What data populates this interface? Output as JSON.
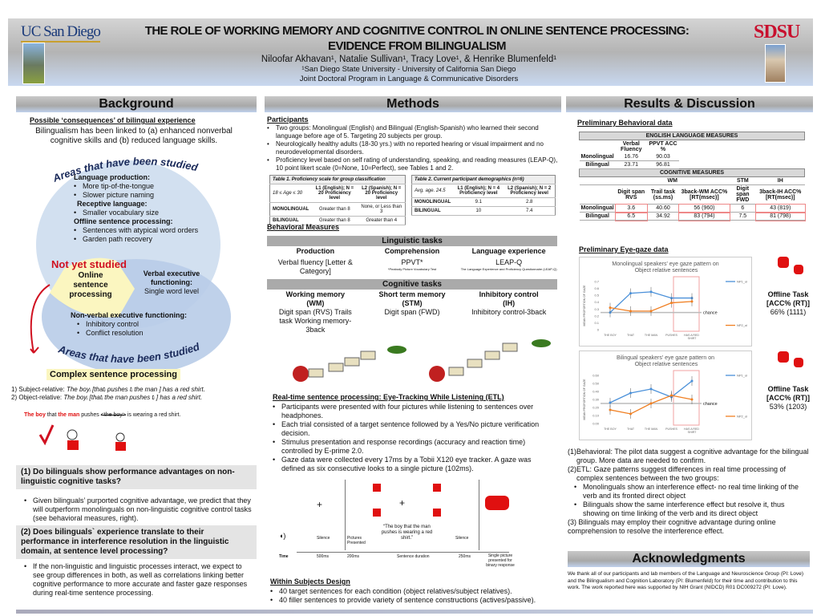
{
  "header": {
    "ucsd_logo": "UCSanDiego",
    "sdsu_logo": "SDSU",
    "title_line1": "THE ROLE OF WORKING MEMORY AND COGNITIVE CONTROL IN ONLINE SENTENCE PROCESSING:",
    "title_line2": "EVIDENCE FROM BILINGUALISM",
    "authors": "Niloofar Akhavan¹, Natalie Sullivan¹, Tracy Love¹, & Henrike Blumenfeld¹",
    "affil1": "¹San Diego State University - University of California San Diego",
    "affil2": "Joint Doctoral Program in Language & Communicative Disorders"
  },
  "background": {
    "heading": "Background",
    "subheading": "Possible ‘consequences’ of bilingual experience",
    "intro": "Bilingualism has been linked to (a) enhanced nonverbal cognitive skills and (b) reduced language skills.",
    "arc_top": "Areas that have been studied",
    "arc_bottom": "Areas that have been studied",
    "lang_prod": "Language production:",
    "lang_prod_items": [
      "More tip-of-the-tongue",
      "Slower picture naming"
    ],
    "receptive": "Receptive language:",
    "receptive_items": [
      "Smaller vocabulary size"
    ],
    "offline": "Offline sentence processing:",
    "offline_items": [
      "Sentences with atypical word orders",
      "Garden path recovery"
    ],
    "not_yet": "Not yet studied",
    "online": "Online sentence processing",
    "verbal_exec": "Verbal executive functioning:",
    "verbal_exec_sub": "Single word level",
    "nonverbal": "Non-verbal executive functioning:",
    "nonverbal_items": [
      "Inhibitory control",
      "Conflict resolution"
    ],
    "complex": "Complex sentence processing",
    "ex1_num": "1)",
    "ex1_label": "Subject-relative:",
    "ex1_text": "The boyᵢ [thatᵢ pushes tᵢ the man ] has a red shirt.",
    "ex2_num": "2)",
    "ex2_label": "Object-relative:",
    "ex2_text": "The boyᵢ [thatᵢ the man pushes tᵢ ] has a red shirt.",
    "ex3_a": "The boy",
    "ex3_b": " that ",
    "ex3_c": "the man",
    "ex3_d": " pushes ",
    "ex3_e": "<the boy>",
    "ex3_f": " is wearing a red shirt.",
    "q1": "(1) Do bilinguals show performance advantages on non-linguistic cognitive tasks?",
    "q1_items": [
      "Given bilinguals’ purported cognitive advantage, we predict that they will outperform monolinguals on non-linguistic cognitive control tasks (see behavioral measures, right)."
    ],
    "q2": "(2) Does bilinguals` experience translate to their performance in interference resolution in the linguistic domain, at sentence level processing?",
    "q2_items": [
      "If the non-linguistic and linguistic processes interact, we expect to see group differences in both, as well as correlations linking better cognitive performance to more accurate and faster gaze responses during real-time sentence processing."
    ]
  },
  "methods": {
    "heading": "Methods",
    "participants": "Participants",
    "part_items": [
      "Two groups: Monolingual (English) and Bilingual (English-Spanish) who learned their second language before age of 5. Targeting 20 subjects per group.",
      "Neurologically healthy adults (18-30 yrs.) with no reported hearing or visual impairment and no neurodevelopmental disorders.",
      "Proficiency level based on self rating of understanding, speaking, and reading measures (LEAP-Q), 10 point likert scale (0=None, 10=Perfect), see Tables 1 and 2."
    ],
    "table1": {
      "caption": "Table 1. Proficiency scale for group classification",
      "head": [
        "18 ≤ Age ≤ 30",
        "L1 (English); N = 20 Proficiency level",
        "L2 (Spanish); N = 20 Proficiency level"
      ],
      "rows": [
        [
          "MONOLINGUAL",
          "Greater than 8",
          "None, or Less than 3"
        ],
        [
          "BILINGUAL",
          "Greater than 8",
          "Greater than 4"
        ]
      ]
    },
    "table2": {
      "caption": "Table 2. Current participant demographics (n=6)",
      "head": [
        "Avg. age. 24.5",
        "L1 (English); N = 4 Proficiency level",
        "L2 (Spanish); N = 2 Proficiency level"
      ],
      "rows": [
        [
          "MONOLINGUAL",
          "9.1",
          "2.8"
        ],
        [
          "BILINGUAL",
          "10",
          "7.4"
        ]
      ]
    },
    "behavioral": "Behavioral Measures",
    "ling_tasks": "Linguistic tasks",
    "ling_cols": [
      {
        "h": "Production",
        "v": "Verbal fluency [Letter & Category]",
        "n": ""
      },
      {
        "h": "Comprehension",
        "v": "PPVT*",
        "n": "*Peabody Picture Vocabulary Test"
      },
      {
        "h": "Language experience",
        "v": "LEAP-Q",
        "n": "The Language Experience and Proficiency Questionnaire (LEAP-Q)"
      }
    ],
    "cog_tasks": "Cognitive tasks",
    "cog_cols": [
      {
        "h": "Working memory (WM)",
        "v": "Digit span (RVS) Trails task Working memory-3back"
      },
      {
        "h": "Short term memory (STM)",
        "v": "Digit span (FWD)"
      },
      {
        "h": "Inhibitory control (IH)",
        "v": "Inhibitory control-3back"
      }
    ],
    "etl_heading": "Real-time sentence processing:  Eye-Tracking While Listening (ETL)",
    "etl_items": [
      "Participants were presented with four pictures while listening to sentences over headphones.",
      "Each trial consisted of a target sentence followed  by a Yes/No picture verification decision.",
      "Stimulus presentation and response recordings (accuracy and reaction time) controlled by E-prime 2.0.",
      "Gaze data were collected every 17ms by a Tobii X120 eye tracker. A gaze was defined as six consecutive looks to a single picture (102ms)."
    ],
    "timeline": {
      "silence1": "Silence",
      "pictures": "Pictures Presented",
      "sentence": "“The boy that the man pushes is wearing a red shirt.”",
      "silence2": "Silence",
      "time": "Time",
      "t1": "500ms",
      "t2": "200ms",
      "t3": "Sentence duration",
      "t4": "250ms",
      "t5": "Single picture presented for binary response"
    },
    "within": "Within Subjects Design",
    "within_items": [
      "40 target sentences for each condition (object relatives/subject relatives).",
      "40 filler sentences to provide variety of sentence constructions (actives/passive)."
    ]
  },
  "results": {
    "heading": "Results & Discussion",
    "prelim_beh": "Preliminary Behavioral data",
    "eng_title": "ENGLISH LANGUAGE MEASURES",
    "eng_cols": [
      "Verbal Fluency",
      "PPVT ACC %"
    ],
    "eng_rows": [
      [
        "Monolingual",
        "16.76",
        "90.03"
      ],
      [
        "Bilingual",
        "23.71",
        "96.81"
      ]
    ],
    "cog_title": "COGNITIVE MEASURES",
    "cog_groups": [
      "WM",
      "STM",
      "IH"
    ],
    "cog_cols": [
      "Digit span RVS",
      "Trail task (ss.ms)",
      "3back-WM ACC% [RT(msec)]",
      "Digit span FWD",
      "3back-IH ACC% [RT(msec)]"
    ],
    "cog_rows": [
      [
        "Monolingual",
        "3.6",
        "40.60",
        "56 (960)",
        "6",
        "43 (819)"
      ],
      [
        "Bilingual",
        "6.5",
        "34.92",
        "83 (794)",
        "7.5",
        "81 (798)"
      ]
    ],
    "prelim_eye": "Preliminary Eye-gaze data",
    "offline1": {
      "label": "Offline Task [ACC% (RT)]",
      "value": "66% (1111)"
    },
    "offline2": {
      "label": "Offline Task [ACC% (RT)]",
      "value": "53% (1203)"
    },
    "conclusions": [
      "(1)Behavioral:  The pilot data suggest a cognitive advantage for the bilingual group.  More data are needed to confirm.",
      "(2)ETL: Gaze patterns suggest differences in real time processing of complex sentences between the two groups:"
    ],
    "concl_items": [
      "Monolinguals show an interference effect- no real time linking of the verb and its fronted direct object",
      "Bilinguals show the same interference effect but resolve it, thus showing on time linking of the verb and its direct object"
    ],
    "concl3": "(3) Bilinguals may employ their cognitive advantage during online comprehension to resolve the interference effect.",
    "ack_heading": "Acknowledgments",
    "ack": "We thank all of our participants and lab members of the Language and Neuroscience Group (PI: Love) and the Bilingualism and Cognition Laboratory (PI: Blumenfeld) for their time and contribution to this work.  The work reported here was supported by NIH Grant (NIDCD) R01 DC009272 (PI: Love)."
  },
  "chart_data": [
    {
      "type": "line",
      "title": "Monolingual speakers' eye gaze pattern on Object relative sentences",
      "ylabel": "MEAN PROPORTION OF GAZE",
      "categories": [
        "THE BOY",
        "THAT",
        "THE MAN",
        "PUSHES",
        "HAS A RED SHIRT"
      ],
      "ylim": [
        0,
        0.7
      ],
      "yticks": [
        "0",
        "0.1",
        "0.2",
        "0.3",
        "0.4",
        "0.5",
        "0.6",
        "0.7"
      ],
      "chance": 0.25,
      "chance_label": "chance",
      "series": [
        {
          "name": "NP1_ol",
          "color": "#4a90d9",
          "values": [
            0.25,
            0.53,
            0.55,
            0.46,
            0.46
          ]
        },
        {
          "name": "NP2_ol",
          "color": "#f07f22",
          "values": [
            0.32,
            0.27,
            0.27,
            0.39,
            0.41
          ]
        }
      ],
      "legend": "right"
    },
    {
      "type": "line",
      "title": "Bilingual speakers' eye gaze pattern on Object relative sentences",
      "ylabel": "MEAN PROPORTION OF GAZE",
      "categories": [
        "THE BOY",
        "THAT",
        "THE MAN",
        "PUSHES",
        "HAS A RED SHIRT"
      ],
      "ylim": [
        0,
        0.6
      ],
      "yticks": [
        "0.00",
        "0.10",
        "0.20",
        "0.30",
        "0.40",
        "0.50",
        "0.60"
      ],
      "chance": 0.25,
      "chance_label": "chance",
      "series": [
        {
          "name": "NP1_ol",
          "color": "#4a90d9",
          "values": [
            0.26,
            0.38,
            0.43,
            0.33,
            0.53
          ]
        },
        {
          "name": "NP2_ol",
          "color": "#f07f22",
          "values": [
            0.17,
            0.12,
            0.25,
            0.35,
            0.3
          ]
        }
      ],
      "legend": "right"
    }
  ]
}
